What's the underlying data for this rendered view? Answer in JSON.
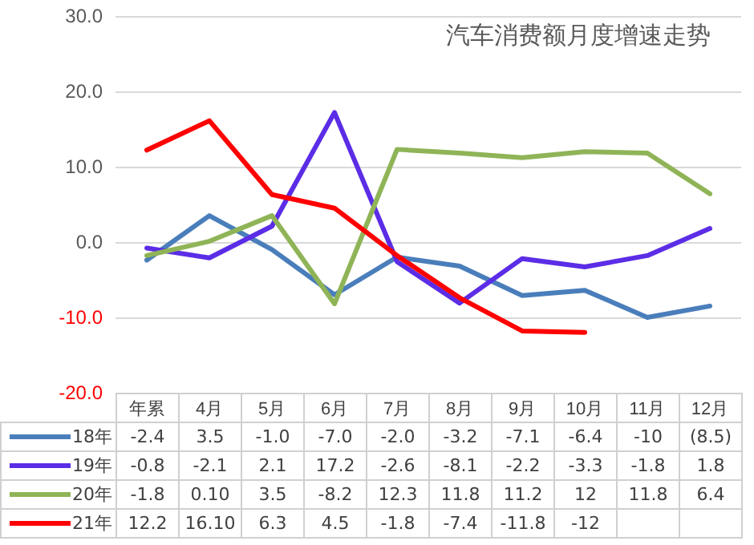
{
  "chart_data": {
    "type": "line",
    "title": "汽车消费额月度增速走势",
    "categories": [
      "年累",
      "4月",
      "5月",
      "6月",
      "7月",
      "8月",
      "9月",
      "10月",
      "11月",
      "12月"
    ],
    "series": [
      {
        "name": "18年",
        "color": "#4a7ebb",
        "values": [
          -2.4,
          3.5,
          -1.0,
          -7.0,
          -2.0,
          -3.2,
          -7.1,
          -6.4,
          -10,
          -8.5
        ],
        "value_labels": [
          "-2.4",
          "3.5",
          "-1.0",
          "-7.0",
          "-2.0",
          "-3.2",
          "-7.1",
          "-6.4",
          "-10",
          "(8.5)"
        ]
      },
      {
        "name": "19年",
        "color": "#5b2de6",
        "values": [
          -0.8,
          -2.1,
          2.1,
          17.2,
          -2.6,
          -8.1,
          -2.2,
          -3.3,
          -1.8,
          1.8
        ],
        "value_labels": [
          "-0.8",
          "-2.1",
          "2.1",
          "17.2",
          "-2.6",
          "-8.1",
          "-2.2",
          "-3.3",
          "-1.8",
          "1.8"
        ]
      },
      {
        "name": "20年",
        "color": "#8fb457",
        "values": [
          -1.8,
          0.1,
          3.5,
          -8.2,
          12.3,
          11.8,
          11.2,
          12,
          11.8,
          6.4
        ],
        "value_labels": [
          "-1.8",
          "0.10",
          "3.5",
          "-8.2",
          "12.3",
          "11.8",
          "11.2",
          "12",
          "11.8",
          "6.4"
        ]
      },
      {
        "name": "21年",
        "color": "#ff0000",
        "values": [
          12.2,
          16.1,
          6.3,
          4.5,
          -1.8,
          -7.4,
          -11.8,
          -12,
          null,
          null
        ],
        "value_labels": [
          "12.2",
          "16.10",
          "6.3",
          "4.5",
          "-1.8",
          "-7.4",
          "-11.8",
          "-12",
          null,
          null
        ]
      }
    ],
    "ylim": [
      -20,
      30
    ],
    "yticks": [
      {
        "value": -20,
        "label": "-20.0"
      },
      {
        "value": -10,
        "label": "-10.0"
      },
      {
        "value": 0,
        "label": "0.0"
      },
      {
        "value": 10,
        "label": "10.0"
      },
      {
        "value": 20,
        "label": "20.0"
      },
      {
        "value": 30,
        "label": "30.0"
      }
    ],
    "grid": "y",
    "legend": "bottom",
    "marker": "none",
    "line_style": "solid"
  }
}
